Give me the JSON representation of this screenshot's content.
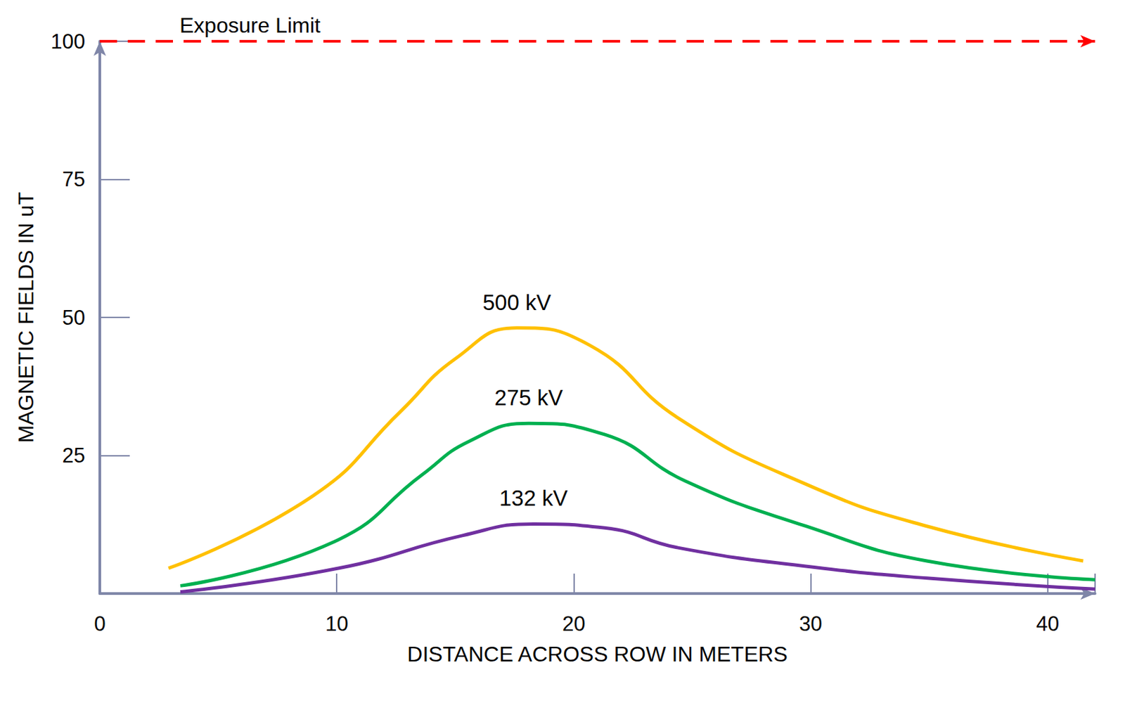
{
  "chart_data": {
    "type": "line",
    "x_label": "DISTANCE ACROSS ROW IN METERS",
    "y_label": "MAGNETIC FIELDS IN uT",
    "xlim": [
      0,
      42
    ],
    "xticks": [
      0,
      10,
      20,
      30,
      40
    ],
    "ylim": [
      0,
      100
    ],
    "yticks": [
      25,
      50,
      75,
      100
    ],
    "grid": false,
    "line_style": "smooth",
    "annotations": [
      {
        "text": "Exposure Limit",
        "y": 100,
        "color": "#ff0000",
        "line_style": "dashed"
      }
    ],
    "series": [
      {
        "name": "500 kV",
        "color": "#ffc000",
        "x": [
          2.9,
          9.0,
          12.7,
          15.0,
          17.6,
          20.7,
          24.4,
          29.8,
          34.9,
          41.5
        ],
        "values": [
          4.6,
          17.7,
          33.0,
          42.5,
          48.1,
          44.9,
          31.8,
          19.8,
          12.2,
          5.9
        ]
      },
      {
        "name": "275 kV",
        "color": "#00b050",
        "x": [
          3.4,
          9.9,
          13.6,
          15.6,
          18.1,
          21.3,
          24.7,
          29.8,
          34.9,
          42.0
        ],
        "values": [
          1.4,
          9.4,
          21.5,
          27.6,
          30.8,
          28.8,
          20.4,
          12.2,
          5.9,
          2.5
        ]
      },
      {
        "name": "132 kV",
        "color": "#7030a0",
        "x": [
          3.4,
          10.1,
          15.3,
          18.3,
          21.3,
          24.4,
          30.1,
          34.9,
          42.0
        ],
        "values": [
          0.3,
          4.6,
          10.5,
          12.6,
          11.9,
          8.3,
          4.8,
          2.8,
          0.8
        ]
      }
    ]
  }
}
